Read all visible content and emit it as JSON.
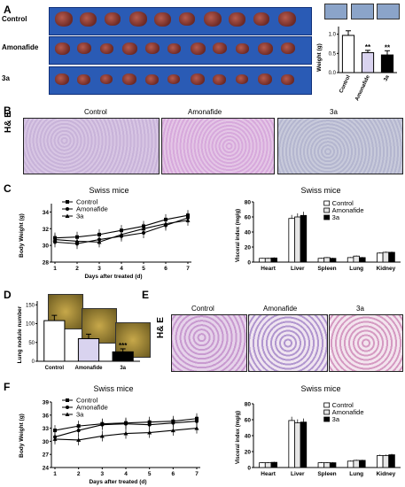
{
  "panels": {
    "A": {
      "label": "A",
      "rows": [
        "Control",
        "Amonafide",
        "3a"
      ],
      "bar": {
        "ylabel": "Weight (g)",
        "yticks": [
          "0.0",
          "0.5",
          "1.0"
        ],
        "ylim": [
          0,
          1.2
        ],
        "categories": [
          "Control",
          "Amonafide",
          "3a"
        ],
        "values": [
          0.97,
          0.52,
          0.46
        ],
        "errors": [
          0.12,
          0.06,
          0.11
        ],
        "sig": [
          "",
          "**",
          "**"
        ]
      }
    },
    "B": {
      "label": "B",
      "stain": "H& E",
      "columns": [
        "Control",
        "Amonafide",
        "3a"
      ]
    },
    "C": {
      "label": "C",
      "line": {
        "title": "Swiss mice",
        "xlabel": "Days after treated (d)",
        "ylabel": "Body Weight (g)",
        "xticks": [
          "1",
          "2",
          "3",
          "4",
          "5",
          "6",
          "7"
        ],
        "yticks": [
          "28",
          "30",
          "32",
          "34"
        ],
        "ylim": [
          28,
          35
        ],
        "legend": [
          "Control",
          "Amonafide",
          "3a"
        ]
      },
      "bar": {
        "title": "Swiss mice",
        "ylabel": "Visceral index (mg/g)",
        "yticks": [
          "0",
          "20",
          "40",
          "60",
          "80"
        ],
        "categories": [
          "Heart",
          "Liver",
          "Spleen",
          "Lung",
          "Kidney"
        ],
        "legend": [
          "Control",
          "Amonafide",
          "3a"
        ]
      }
    },
    "D": {
      "label": "D",
      "bar": {
        "ylabel": "Lung nodule number",
        "yticks": [
          "0",
          "50",
          "100",
          "150"
        ],
        "ylim": [
          0,
          160
        ],
        "categories": [
          "Control",
          "Amonafide",
          "3a"
        ],
        "values": [
          108,
          60,
          25
        ],
        "errors": [
          14,
          12,
          8
        ],
        "sig": [
          "",
          "",
          "***"
        ]
      }
    },
    "E": {
      "label": "E",
      "stain": "H& E",
      "columns": [
        "Control",
        "Amonafide",
        "3a"
      ]
    },
    "F": {
      "label": "F",
      "line": {
        "title": "Swiss mice",
        "xlabel": "Days after treated (d)",
        "ylabel": "Body Weight (g)",
        "xticks": [
          "1",
          "2",
          "3",
          "4",
          "5",
          "6",
          "7"
        ],
        "yticks": [
          "24",
          "27",
          "30",
          "33",
          "36",
          "39"
        ],
        "ylim": [
          24,
          39
        ],
        "legend": [
          "Control",
          "Amonafide",
          "3a"
        ]
      },
      "bar": {
        "title": "Swiss mice",
        "ylabel": "Visceral index (mg/g)",
        "yticks": [
          "0",
          "20",
          "40",
          "60",
          "80"
        ],
        "categories": [
          "Heart",
          "Liver",
          "Spleen",
          "Lung",
          "Kidney"
        ],
        "legend": [
          "Control",
          "Amonafide",
          "3a"
        ]
      }
    }
  },
  "colors": {
    "tumor_bg": "#2a5bb5",
    "histo_pink": "#d9b6e0",
    "histo_blue": "#c5c8dd"
  },
  "chart_data": [
    {
      "type": "bar",
      "panel": "A",
      "categories": [
        "Control",
        "Amonafide",
        "3a"
      ],
      "values": [
        0.97,
        0.52,
        0.46
      ],
      "ylabel": "Weight (g)",
      "ylim": [
        0,
        1.2
      ]
    },
    {
      "type": "line",
      "panel": "C",
      "title": "Swiss mice",
      "x": [
        1,
        2,
        3,
        4,
        5,
        6,
        7
      ],
      "series": [
        {
          "name": "Control",
          "values": [
            30.9,
            31.0,
            31.3,
            31.8,
            32.3,
            33.1,
            33.6
          ]
        },
        {
          "name": "Amonafide",
          "values": [
            30.4,
            30.2,
            30.7,
            31.1,
            31.5,
            32.4,
            33.3
          ]
        },
        {
          "name": "3a",
          "values": [
            30.7,
            30.5,
            30.4,
            31.3,
            32.0,
            32.6,
            33.0
          ]
        }
      ],
      "xlabel": "Days after treated (d)",
      "ylabel": "Body Weight (g)",
      "ylim": [
        28,
        35
      ]
    },
    {
      "type": "bar",
      "panel": "C",
      "title": "Swiss mice",
      "categories": [
        "Heart",
        "Liver",
        "Spleen",
        "Lung",
        "Kidney"
      ],
      "series": [
        {
          "name": "Control",
          "values": [
            5,
            58,
            5,
            6,
            12
          ]
        },
        {
          "name": "Amonafide",
          "values": [
            5,
            60,
            6,
            8,
            13
          ]
        },
        {
          "name": "3a",
          "values": [
            5.5,
            62,
            5,
            6,
            13
          ]
        }
      ],
      "ylabel": "Visceral index (mg/g)",
      "ylim": [
        0,
        80
      ]
    },
    {
      "type": "bar",
      "panel": "D",
      "categories": [
        "Control",
        "Amonafide",
        "3a"
      ],
      "values": [
        108,
        60,
        25
      ],
      "ylabel": "Lung nodule number",
      "ylim": [
        0,
        160
      ]
    },
    {
      "type": "line",
      "panel": "F",
      "title": "Swiss mice",
      "x": [
        1,
        2,
        3,
        4,
        5,
        6,
        7
      ],
      "series": [
        {
          "name": "Control",
          "values": [
            32.5,
            33.5,
            34.0,
            34.2,
            34.4,
            34.6,
            35.2
          ]
        },
        {
          "name": "Amonafide",
          "values": [
            31.0,
            32.5,
            33.8,
            34.0,
            33.8,
            34.2,
            34.6
          ]
        },
        {
          "name": "3a",
          "values": [
            30.5,
            30.3,
            31.2,
            31.8,
            32.0,
            32.5,
            33.0
          ]
        }
      ],
      "xlabel": "Days after treated (d)",
      "ylabel": "Body Weight (g)",
      "ylim": [
        24,
        39
      ]
    },
    {
      "type": "bar",
      "panel": "F",
      "title": "Swiss mice",
      "categories": [
        "Heart",
        "Liver",
        "Spleen",
        "Lung",
        "Kidney"
      ],
      "series": [
        {
          "name": "Control",
          "values": [
            6,
            59,
            6,
            8,
            15
          ]
        },
        {
          "name": "Amonafide",
          "values": [
            6,
            56,
            6,
            9,
            15
          ]
        },
        {
          "name": "3a",
          "values": [
            6.5,
            57,
            6,
            9,
            16
          ]
        }
      ],
      "ylabel": "Visceral index (mg/g)",
      "ylim": [
        0,
        80
      ]
    }
  ]
}
